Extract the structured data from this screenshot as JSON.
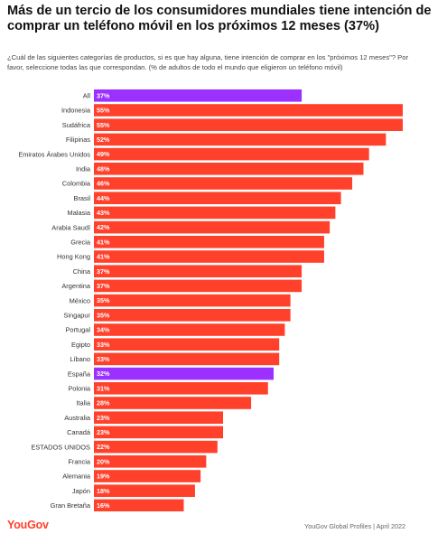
{
  "title": "Más de un tercio de los consumidores mundiales tiene intención de comprar un teléfono móvil en los próximos 12 meses (37%)",
  "subtitle": "¿Cuál de las siguientes categorías de productos, si es que hay alguna, tiene intención de comprar en los \"próximos 12 meses\"? Por favor, seleccione todas las que correspondan. (% de adultos de todo el mundo que eligieron un teléfono móvil)",
  "footer": {
    "logo_text": "YouGov",
    "source": "YouGov Global Profiles | April 2022"
  },
  "colors": {
    "default_bar": "#ff412c",
    "highlight_bar": "#9b30ff"
  },
  "chart_data": {
    "type": "bar",
    "orientation": "horizontal",
    "title": "Más de un tercio de los consumidores mundiales tiene intención de comprar un teléfono móvil en los próximos 12 meses (37%)",
    "unit": "%",
    "xlim": [
      0,
      55
    ],
    "grid": false,
    "categories": [
      "All",
      "Indonesia",
      "Sudáfrica",
      "Filipinas",
      "Emiratos Árabes Unidos",
      "India",
      "Colombia",
      "Brasil",
      "Malasia",
      "Arabia Saudí",
      "Grecia",
      "Hong Kong",
      "China",
      "Argentina",
      "México",
      "Singapur",
      "Portugal",
      "Egipto",
      "Líbano",
      "España",
      "Polonia",
      "Italia",
      "Australia",
      "Canadá",
      "ESTADOS UNIDOS",
      "Francia",
      "Alemania",
      "Japón",
      "Gran Bretaña"
    ],
    "values": [
      37,
      55,
      55,
      52,
      49,
      48,
      46,
      44,
      43,
      42,
      41,
      41,
      37,
      37,
      35,
      35,
      34,
      33,
      33,
      32,
      31,
      28,
      23,
      23,
      22,
      20,
      19,
      18,
      16
    ],
    "value_labels": [
      "37%",
      "55%",
      "55%",
      "52%",
      "49%",
      "48%",
      "46%",
      "44%",
      "43%",
      "42%",
      "41%",
      "41%",
      "37%",
      "37%",
      "35%",
      "35%",
      "34%",
      "33%",
      "33%",
      "32%",
      "31%",
      "28%",
      "23%",
      "23%",
      "22%",
      "20%",
      "19%",
      "18%",
      "16%"
    ],
    "highlighted": [
      "All",
      "España"
    ]
  }
}
